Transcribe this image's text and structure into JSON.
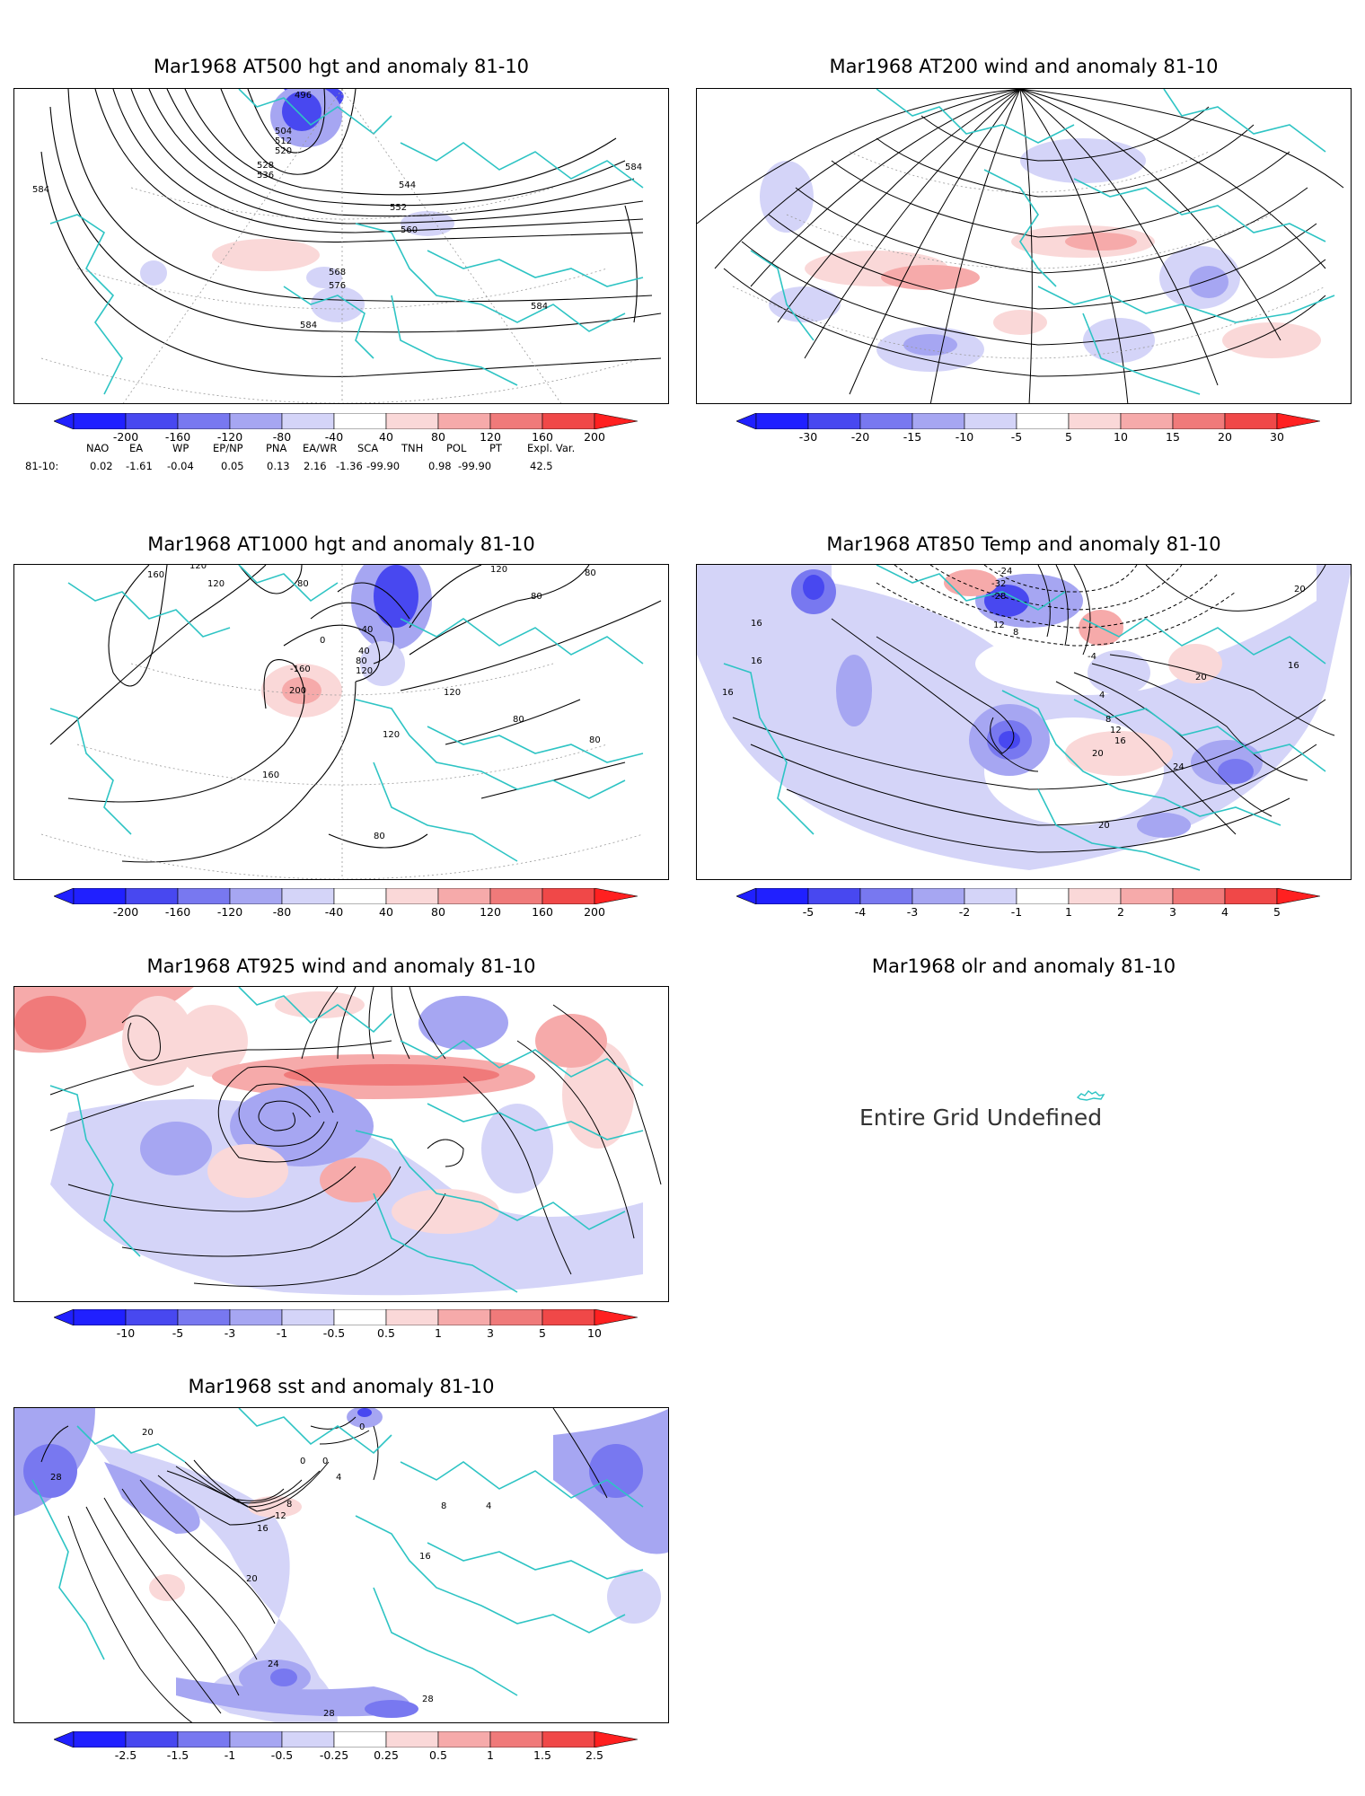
{
  "panels": [
    {
      "id": "p1",
      "title": "Mar1968 AT500 hgt and anomaly 81-10",
      "contour_labels": [
        "496",
        "504",
        "512",
        "520",
        "528",
        "536",
        "544",
        "552",
        "560",
        "568",
        "576",
        "584",
        "584",
        "584",
        "584"
      ],
      "colorbar": [
        "-200",
        "-160",
        "-120",
        "-80",
        "-40",
        "40",
        "80",
        "120",
        "160",
        "200"
      ]
    },
    {
      "id": "p2",
      "title": "Mar1968 AT200 wind and anomaly 81-10",
      "contour_labels": [],
      "colorbar": [
        "-30",
        "-20",
        "-15",
        "-10",
        "-5",
        "5",
        "10",
        "15",
        "20",
        "30"
      ]
    },
    {
      "id": "p3",
      "title": "Mar1968 AT1000 hgt and anomaly 81-10",
      "contour_labels": [
        "160",
        "120",
        "120",
        "80",
        "0",
        "-40",
        "40",
        "80",
        "120",
        "200",
        "-160",
        "120",
        "120",
        "80",
        "80",
        "80",
        "120",
        "160",
        "80",
        "80"
      ],
      "colorbar": [
        "-200",
        "-160",
        "-120",
        "-80",
        "-40",
        "40",
        "80",
        "120",
        "160",
        "200"
      ]
    },
    {
      "id": "p4",
      "title": "Mar1968 AT850 Temp and anomaly 81-10",
      "contour_labels": [
        "-24",
        "-32",
        "-28",
        "12",
        "8",
        "16",
        "16",
        "16",
        "-4",
        "4",
        "8",
        "12",
        "16",
        "20",
        "24",
        "20",
        "20",
        "16",
        "20"
      ],
      "colorbar": [
        "-5",
        "-4",
        "-3",
        "-2",
        "-1",
        "1",
        "2",
        "3",
        "4",
        "5"
      ]
    },
    {
      "id": "p5",
      "title": "Mar1968 AT925 wind and anomaly 81-10",
      "contour_labels": [],
      "colorbar": [
        "-10",
        "-5",
        "-3",
        "-1",
        "-0.5",
        "0.5",
        "1",
        "3",
        "5",
        "10"
      ]
    },
    {
      "id": "p6",
      "title": "Mar1968 olr and anomaly 81-10",
      "undefined_text": "Entire Grid Undefined"
    },
    {
      "id": "p7",
      "title": "Mar1968 sst and anomaly 81-10",
      "contour_labels": [
        "20",
        "28",
        "0",
        "0",
        "0",
        "4",
        "8",
        "12",
        "16",
        "20",
        "24",
        "28",
        "28",
        "16",
        "8",
        "4"
      ],
      "colorbar": [
        "-2.5",
        "-1.5",
        "-1",
        "-0.5",
        "-0.25",
        "0.25",
        "0.5",
        "1",
        "1.5",
        "2.5"
      ]
    }
  ],
  "indices": {
    "headers": [
      "NAO",
      "EA",
      "WP",
      "EP/NP",
      "PNA",
      "EA/WR",
      "SCA",
      "TNH",
      "POL",
      "PT",
      "Expl. Var."
    ],
    "row_label": "81-10:",
    "values": [
      "0.02",
      "-1.61",
      "-0.04",
      "0.05",
      "0.13",
      "2.16",
      "-1.36",
      "-99.90",
      "0.98",
      "-99.90",
      "42.5"
    ]
  },
  "colors": {
    "coast": "#2ec4c4",
    "blue_scale": [
      "#2020ff",
      "#4848f0",
      "#7878f0",
      "#a6a6f2",
      "#d4d4f8"
    ],
    "red_scale": [
      "#fad8d8",
      "#f6aaaa",
      "#f07a7a",
      "#f04848",
      "#ff2020"
    ]
  }
}
